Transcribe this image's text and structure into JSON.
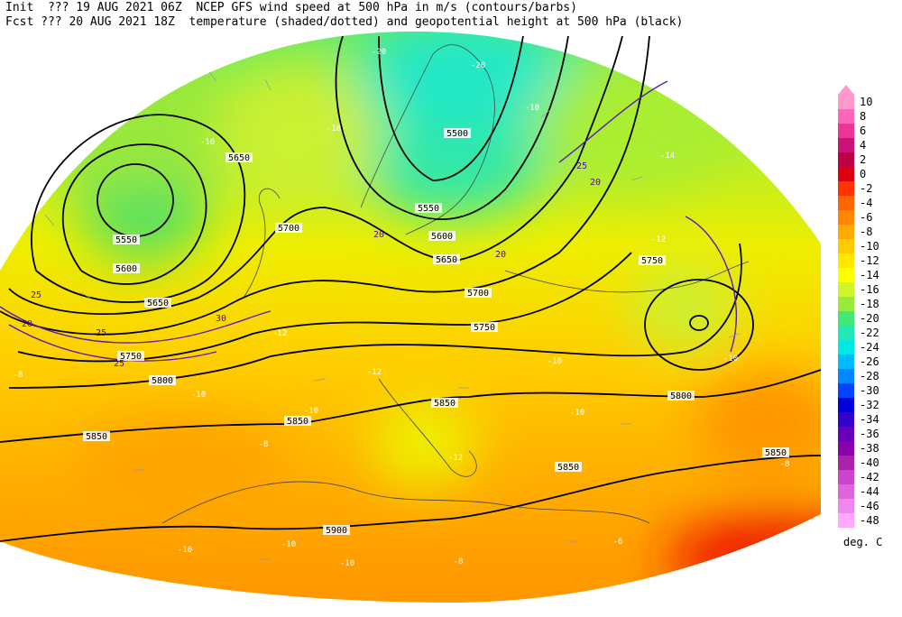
{
  "header": {
    "line1": "Init  ??? 19 AUG 2021 06Z  NCEP GFS wind speed at 500 hPa in m/s (contours/barbs)",
    "line2": "Fcst ??? 20 AUG 2021 18Z  temperature (shaded/dotted) and geopotential height at 500 hPa (black)"
  },
  "colorbar": {
    "unit": "deg. C",
    "labels": [
      10,
      8,
      6,
      4,
      2,
      0,
      -2,
      -4,
      -6,
      -8,
      -10,
      -12,
      -14,
      -16,
      -18,
      -20,
      -22,
      -24,
      -26,
      -28,
      -30,
      -32,
      -34,
      -36,
      -38,
      -40,
      -42,
      -44,
      -46,
      -48
    ],
    "colors": [
      "#ff99cc",
      "#ff66bb",
      "#ee3399",
      "#cc1177",
      "#bb0044",
      "#dd0011",
      "#ff3300",
      "#ff6600",
      "#ff8800",
      "#ffaa00",
      "#ffcc00",
      "#ffe800",
      "#ffff00",
      "#ccf52a",
      "#99ea3a",
      "#44e877",
      "#22e8bb",
      "#00e8e8",
      "#00bbff",
      "#0088ff",
      "#0044ff",
      "#0000dd",
      "#3300cc",
      "#6600bb",
      "#8800aa",
      "#aa22aa",
      "#cc44cc",
      "#dd66dd",
      "#ee88ee",
      "#ffaaff"
    ]
  },
  "map": {
    "height_labels": [
      5650,
      5500,
      5550,
      5550,
      5600,
      5600,
      5650,
      5650,
      5700,
      5700,
      5750,
      5750,
      5750,
      5800,
      5800,
      5850,
      5850,
      5850,
      5850,
      5850,
      5900
    ],
    "temperature_labels": [
      -16,
      -18,
      -20,
      -20,
      -14,
      -12,
      -12,
      -12,
      -10,
      -10,
      -10,
      -8,
      -8,
      -10,
      -10,
      -10,
      -12,
      -10,
      -8,
      -8,
      -6,
      -10,
      -10
    ],
    "wind_labels": [
      20,
      25,
      30,
      25,
      25,
      20,
      20,
      25,
      20
    ]
  }
}
